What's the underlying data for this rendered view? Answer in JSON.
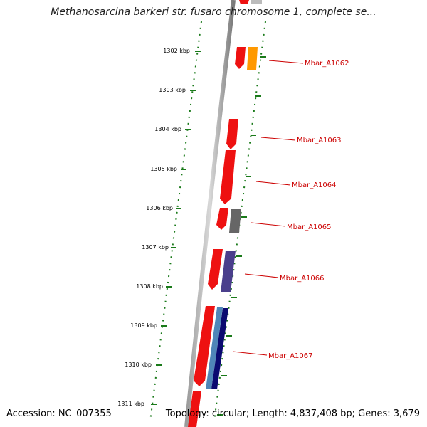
{
  "title": "Methanosarcina barkeri str. fusaro chromosome 1, complete se...",
  "footer": {
    "accession": "Accession: NC_007355",
    "topology": "Topology: circular; Length: 4,837,408 bp; Genes: 3,679"
  },
  "kbp_labels": [
    "1302 kbp",
    "1303 kbp",
    "1304 kbp",
    "1305 kbp",
    "1306 kbp",
    "1307 kbp",
    "1308 kbp",
    "1309 kbp",
    "1310 kbp",
    "1311 kbp"
  ],
  "gene_labels": [
    "Mbar_A1062",
    "Mbar_A1063",
    "Mbar_A1064",
    "Mbar_A1065",
    "Mbar_A1066",
    "Mbar_A1067"
  ],
  "colors": {
    "forward_gene": "#ee1111",
    "orange_gene": "#ff9900",
    "gray_gene": "#666666",
    "purple_gene": "#4a3f8c",
    "steelblue_gene": "#4f86b8",
    "navy_gene": "#0a0a70",
    "ruler_ticks": "#1a7a1a",
    "label_text": "#cc0000"
  }
}
